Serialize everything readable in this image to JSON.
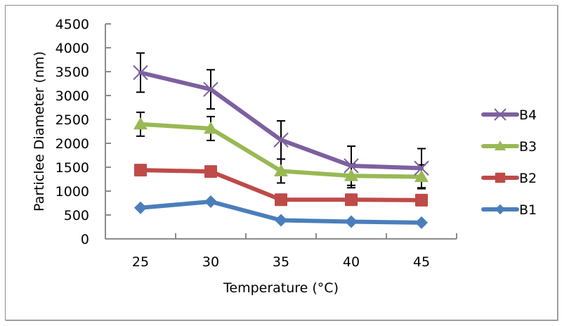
{
  "chart_data": {
    "type": "line",
    "title": "",
    "xlabel": "Temperature (°C)",
    "ylabel": "Particlee Diameter (nm)",
    "x": [
      25,
      30,
      35,
      40,
      45
    ],
    "x_tick_labels": [
      "25",
      "30",
      "35",
      "40",
      "45"
    ],
    "ylim": [
      0,
      4500
    ],
    "y_ticks": [
      0,
      500,
      1000,
      1500,
      2000,
      2500,
      3000,
      3500,
      4000,
      4500
    ],
    "y_tick_labels": [
      "0",
      "500",
      "1000",
      "1500",
      "2000",
      "2500",
      "3000",
      "3500",
      "4000",
      "4500"
    ],
    "grid": false,
    "legend_position": "right",
    "series": [
      {
        "name": "B1",
        "color": "#4a7ebb",
        "marker": "diamond",
        "values": [
          650,
          780,
          390,
          360,
          340
        ],
        "errors": [
          30,
          30,
          30,
          30,
          30
        ]
      },
      {
        "name": "B2",
        "color": "#be4b48",
        "marker": "square",
        "values": [
          1440,
          1410,
          820,
          820,
          810
        ],
        "errors": [
          100,
          100,
          100,
          100,
          100
        ]
      },
      {
        "name": "B3",
        "color": "#98b954",
        "marker": "triangle",
        "values": [
          2400,
          2310,
          1420,
          1320,
          1300
        ],
        "errors": [
          250,
          250,
          250,
          250,
          250
        ]
      },
      {
        "name": "B4",
        "color": "#7d60a0",
        "marker": "x",
        "values": [
          3480,
          3130,
          2070,
          1530,
          1480
        ],
        "errors": [
          410,
          410,
          400,
          410,
          410
        ]
      }
    ],
    "legend_order": [
      "B4",
      "B3",
      "B2",
      "B1"
    ]
  }
}
